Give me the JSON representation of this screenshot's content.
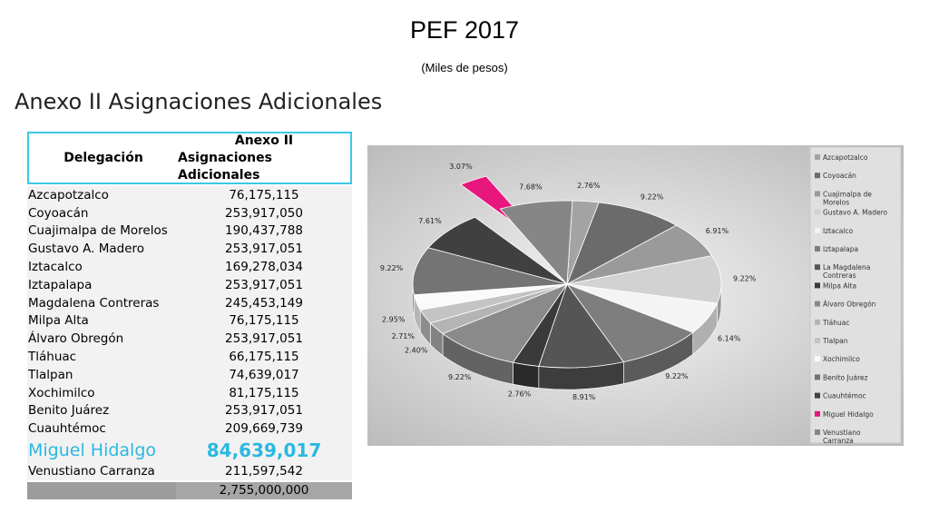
{
  "header": {
    "title": "PEF 2017",
    "subtitle": "(Miles de pesos)",
    "section_title": "Anexo II Asignaciones Adicionales"
  },
  "table": {
    "col1": "Delegación",
    "col2_line1": "Anexo II",
    "col2_line2": "Asignaciones Adicionales",
    "rows": [
      {
        "name": "Azcapotzalco",
        "value": "76,175,115"
      },
      {
        "name": "Coyoacán",
        "value": "253,917,050"
      },
      {
        "name": "Cuajimalpa de Morelos",
        "value": "190,437,788"
      },
      {
        "name": "Gustavo A. Madero",
        "value": "253,917,051"
      },
      {
        "name": "Iztacalco",
        "value": "169,278,034"
      },
      {
        "name": "Iztapalapa",
        "value": "253,917,051"
      },
      {
        "name": "Magdalena Contreras",
        "value": "245,453,149"
      },
      {
        "name": "Milpa Alta",
        "value": "76,175,115"
      },
      {
        "name": "Álvaro Obregón",
        "value": "253,917,051"
      },
      {
        "name": "Tláhuac",
        "value": "66,175,115"
      },
      {
        "name": "Tlalpan",
        "value": "74,639,017"
      },
      {
        "name": "Xochimilco",
        "value": "81,175,115"
      },
      {
        "name": "Benito Juárez",
        "value": "253,917,051"
      },
      {
        "name": "Cuauhtémoc",
        "value": "209,669,739"
      },
      {
        "name": "Miguel Hidalgo",
        "value": "84,639,017"
      },
      {
        "name": "Venustiano Carranza",
        "value": "211,597,542"
      }
    ],
    "highlight_index": 14,
    "total": "2,755,000,000",
    "highlight_color": "#2ab8e0"
  },
  "chart_data": {
    "type": "pie",
    "title": "",
    "legend_position": "right",
    "slices": [
      {
        "label": "Azcapotzalco",
        "pct": "2.76%",
        "value": 2.76,
        "color": "#a3a3a3"
      },
      {
        "label": "Coyoacán",
        "pct": "9.22%",
        "value": 9.22,
        "color": "#6b6b6b"
      },
      {
        "label": "Cuajimalpa de Morelos",
        "pct": "6.91%",
        "value": 6.91,
        "color": "#9a9a9a"
      },
      {
        "label": "Gustavo A. Madero",
        "pct": "9.22%",
        "value": 9.22,
        "color": "#d2d2d2"
      },
      {
        "label": "Iztacalco",
        "pct": "6.14%",
        "value": 6.14,
        "color": "#f4f4f4"
      },
      {
        "label": "Iztapalapa",
        "pct": "9.22%",
        "value": 9.22,
        "color": "#7e7e7e"
      },
      {
        "label": "La Magdalena Contreras",
        "pct": "8.91%",
        "value": 8.91,
        "color": "#555555"
      },
      {
        "label": "Milpa Alta",
        "pct": "2.76%",
        "value": 2.76,
        "color": "#3a3a3a"
      },
      {
        "label": "Álvaro Obregón",
        "pct": "9.22%",
        "value": 9.22,
        "color": "#8a8a8a"
      },
      {
        "label": "Tláhuac",
        "pct": "2.40%",
        "value": 2.4,
        "color": "#b4b4b4"
      },
      {
        "label": "Tlalpan",
        "pct": "2.71%",
        "value": 2.71,
        "color": "#c4c4c4"
      },
      {
        "label": "Xochimilco",
        "pct": "2.95%",
        "value": 2.95,
        "color": "#fafafa"
      },
      {
        "label": "Benito Juárez",
        "pct": "9.22%",
        "value": 9.22,
        "color": "#747474"
      },
      {
        "label": "Cuauhtémoc",
        "pct": "7.61%",
        "value": 7.61,
        "color": "#404040"
      },
      {
        "label": "Miguel Hidalgo",
        "pct": "3.07%",
        "value": 3.07,
        "color": "#e8177d"
      },
      {
        "label": "Venustiano Carranza",
        "pct": "7.68%",
        "value": 7.68,
        "color": "#868686"
      }
    ],
    "legend": [
      "Azcapotzalco",
      "Coyoacán",
      "Cuajimalpa de Morelos",
      "Gustavo A. Madero",
      "Iztacalco",
      "Iztapalapa",
      "La Magdalena Contreras",
      "Milpa Alta",
      "Álvaro Obregón",
      "Tláhuac",
      "Tlalpan",
      "Xochimilco",
      "Benito Juárez",
      "Cuauhtémoc",
      "Miguel Hidalgo",
      "Venustiano Carranza"
    ]
  }
}
